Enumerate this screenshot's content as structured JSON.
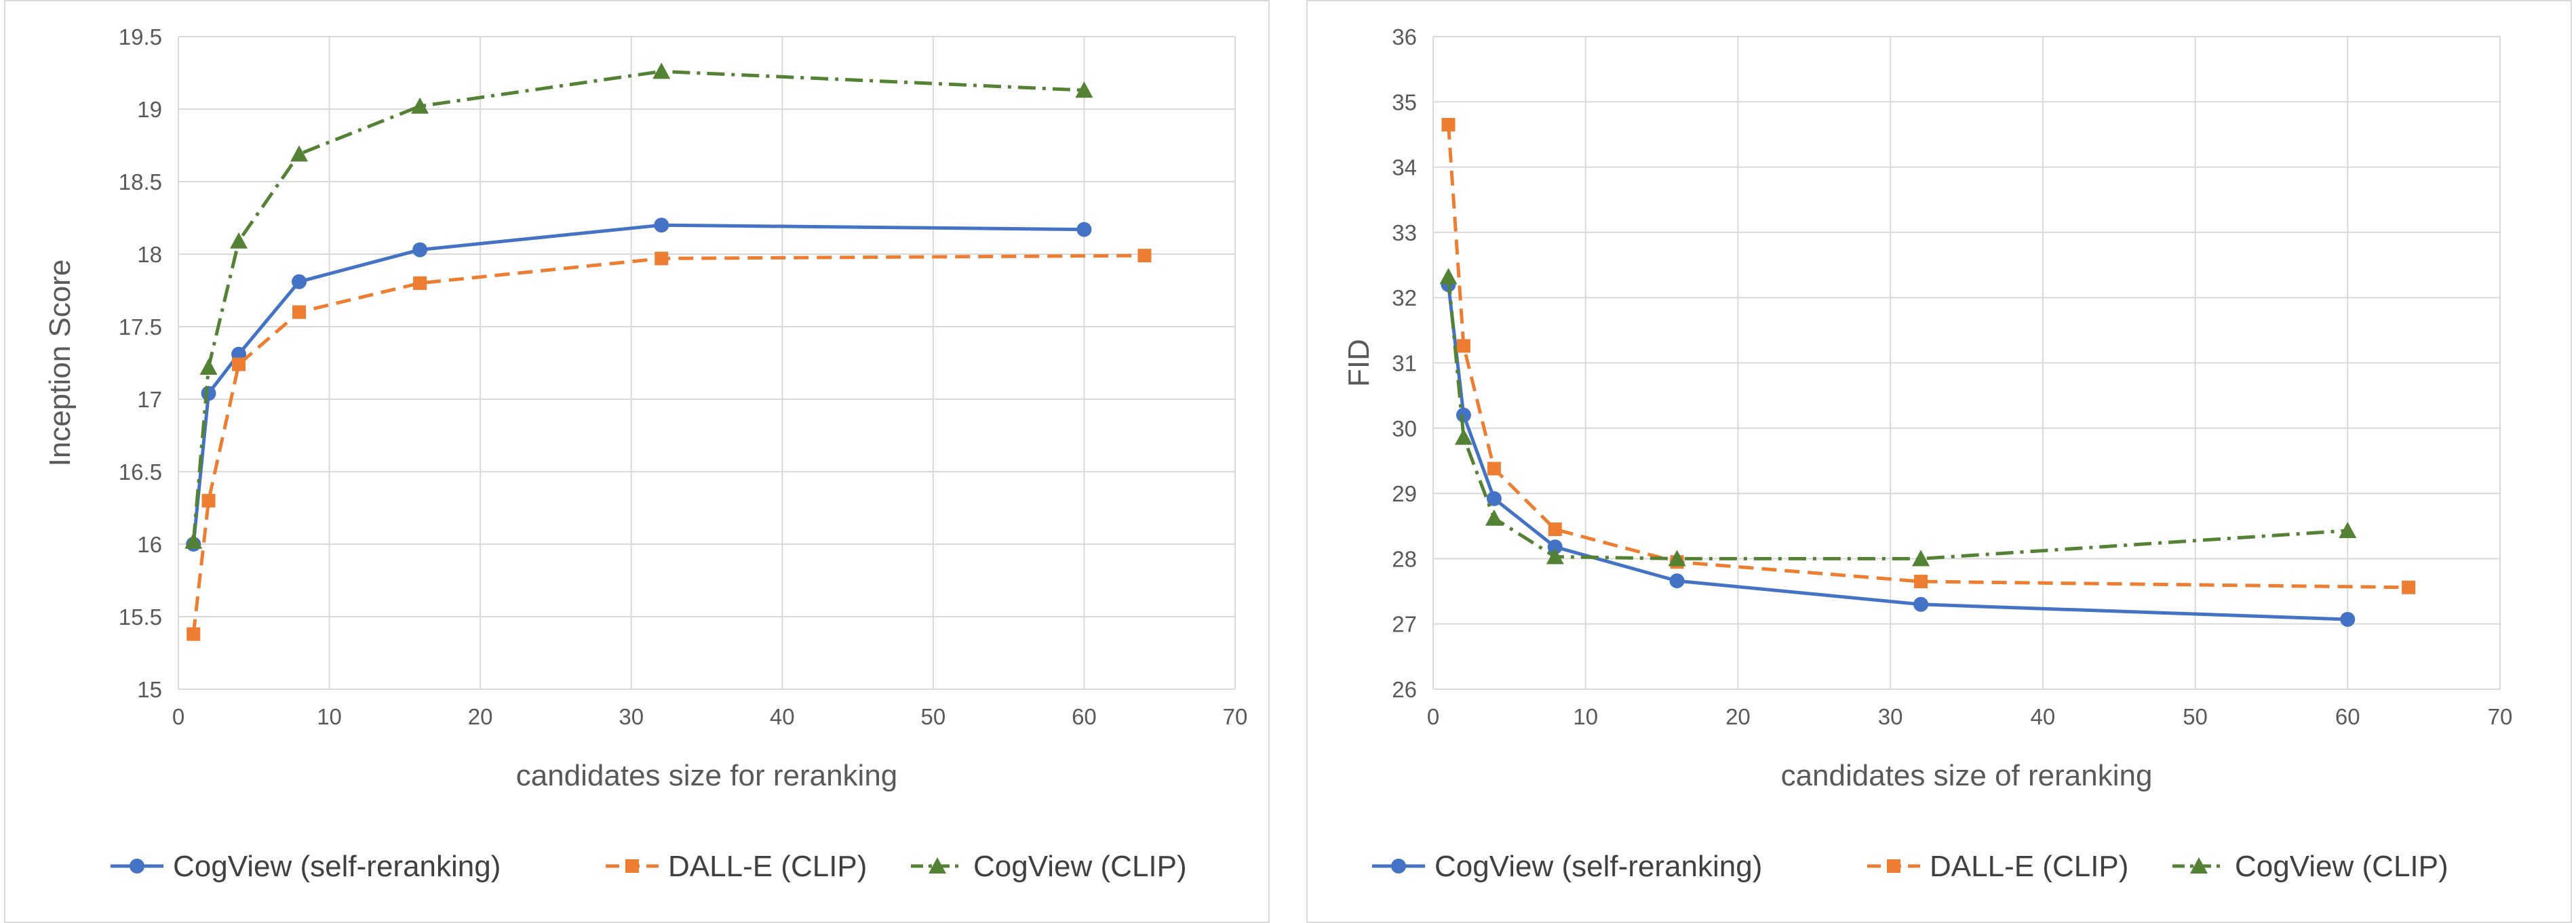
{
  "chart_data": [
    {
      "type": "line",
      "title": "",
      "xlabel": "candidates size for reranking",
      "ylabel": "Inception Score",
      "xlim": [
        0,
        70
      ],
      "ylim": [
        15,
        19.5
      ],
      "xticks": [
        0,
        10,
        20,
        30,
        40,
        50,
        60,
        70
      ],
      "yticks": [
        15,
        15.5,
        16,
        16.5,
        17,
        17.5,
        18,
        18.5,
        19,
        19.5
      ],
      "xtick_labels": [
        "0",
        "10",
        "20",
        "30",
        "40",
        "50",
        "60",
        "70"
      ],
      "ytick_labels": [
        "15",
        "15.5",
        "16",
        "16.5",
        "17",
        "17.5",
        "18",
        "18.5",
        "19",
        "19.5"
      ],
      "grid": true,
      "legend_position": "bottom",
      "series": [
        {
          "name": "CogView (self-reranking)",
          "color": "#4472c4",
          "dash": "solid",
          "marker": "circle",
          "x": [
            1,
            2,
            4,
            8,
            16,
            32,
            60
          ],
          "y": [
            16.0,
            17.04,
            17.31,
            17.81,
            18.03,
            18.2,
            18.17
          ]
        },
        {
          "name": "DALL-E (CLIP)",
          "color": "#ed7d31",
          "dash": "dashed",
          "marker": "square",
          "x": [
            1,
            2,
            4,
            8,
            16,
            32,
            64
          ],
          "y": [
            15.38,
            16.3,
            17.24,
            17.6,
            17.8,
            17.97,
            17.99
          ]
        },
        {
          "name": "CogView (CLIP)",
          "color": "#548235",
          "dash": "dashdot",
          "marker": "triangle",
          "x": [
            1,
            2,
            4,
            8,
            16,
            32,
            60
          ],
          "y": [
            16.02,
            17.22,
            18.09,
            18.69,
            19.02,
            19.26,
            19.13
          ]
        }
      ]
    },
    {
      "type": "line",
      "title": "",
      "xlabel": "candidates size of reranking",
      "ylabel": "FID",
      "xlim": [
        0,
        70
      ],
      "ylim": [
        26,
        36
      ],
      "xticks": [
        0,
        10,
        20,
        30,
        40,
        50,
        60,
        70
      ],
      "yticks": [
        26,
        27,
        28,
        29,
        30,
        31,
        32,
        33,
        34,
        35,
        36
      ],
      "xtick_labels": [
        "0",
        "10",
        "20",
        "30",
        "40",
        "50",
        "60",
        "70"
      ],
      "ytick_labels": [
        "26",
        "27",
        "28",
        "29",
        "30",
        "31",
        "32",
        "33",
        "34",
        "35",
        "36"
      ],
      "grid": true,
      "legend_position": "bottom",
      "series": [
        {
          "name": "CogView (self-reranking)",
          "color": "#4472c4",
          "dash": "solid",
          "marker": "circle",
          "x": [
            1,
            2,
            4,
            8,
            16,
            32,
            60
          ],
          "y": [
            32.2,
            30.2,
            28.92,
            28.18,
            27.66,
            27.3,
            27.07
          ]
        },
        {
          "name": "DALL-E (CLIP)",
          "color": "#ed7d31",
          "dash": "dashed",
          "marker": "square",
          "x": [
            1,
            2,
            4,
            8,
            16,
            32,
            64
          ],
          "y": [
            34.65,
            31.26,
            29.38,
            28.45,
            27.95,
            27.65,
            27.56
          ]
        },
        {
          "name": "CogView (CLIP)",
          "color": "#548235",
          "dash": "dashdot",
          "marker": "triangle",
          "x": [
            1,
            2,
            4,
            8,
            16,
            32,
            60
          ],
          "y": [
            32.32,
            29.86,
            28.62,
            28.03,
            28.0,
            28.0,
            28.43
          ]
        }
      ]
    }
  ]
}
